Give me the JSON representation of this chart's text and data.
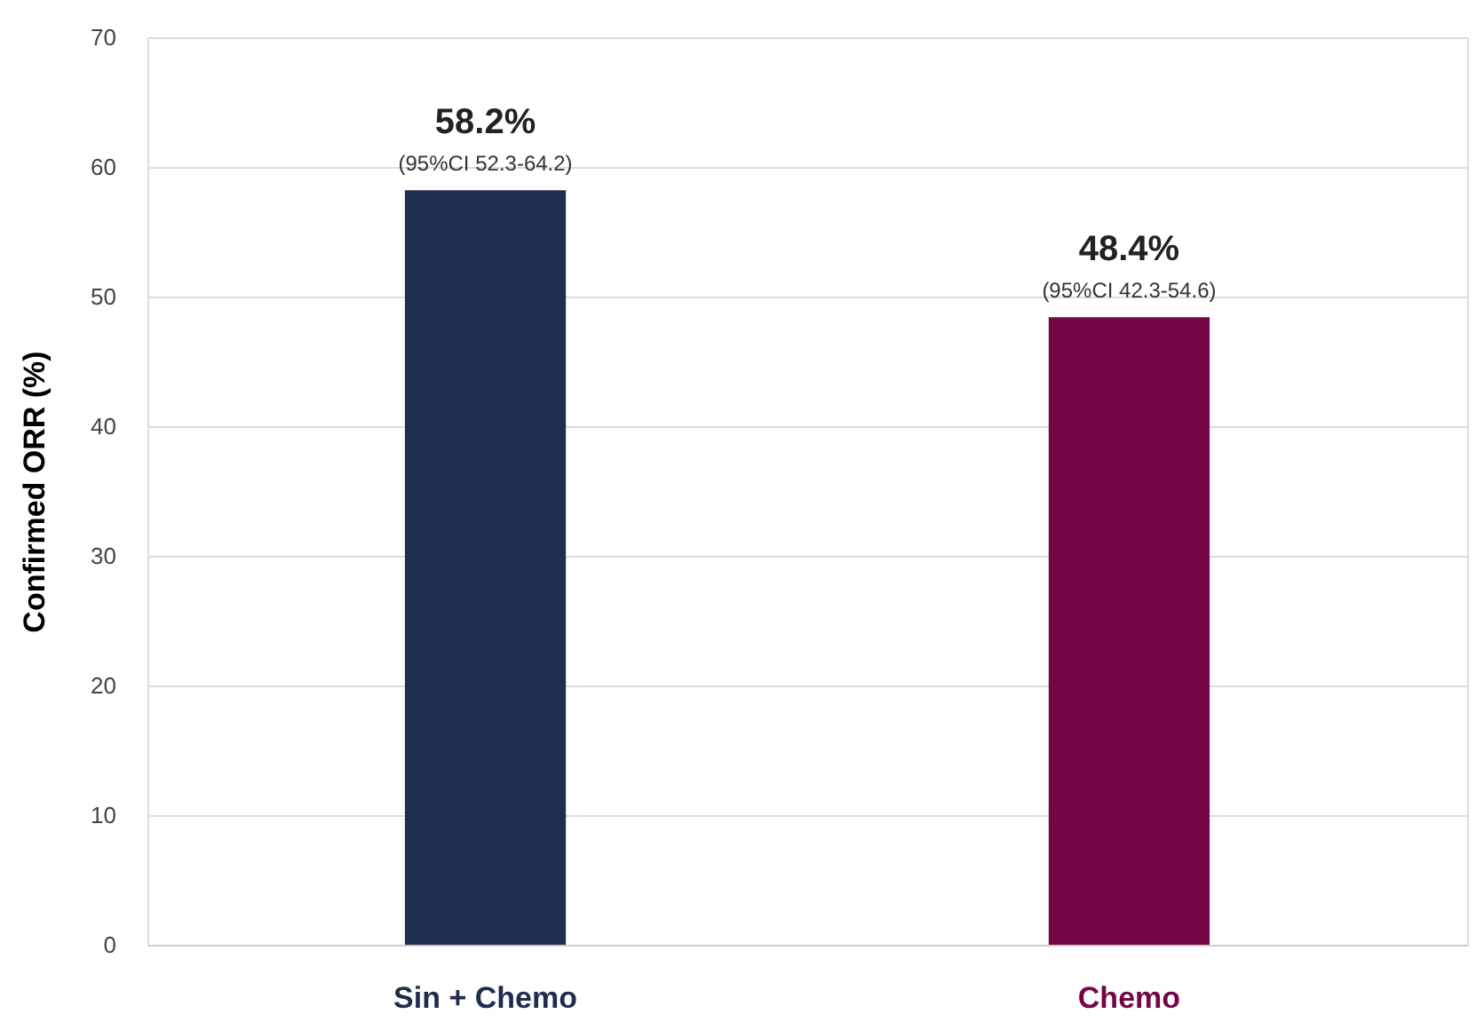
{
  "chart_data": {
    "type": "bar",
    "ylabel": "Confirmed ORR (%)",
    "categories": [
      "Sin + Chemo",
      "Chemo"
    ],
    "values": [
      58.2,
      48.4
    ],
    "colors": [
      "#1f2d4e",
      "#750646"
    ],
    "value_labels": [
      "58.2%",
      "48.4%"
    ],
    "annotations": [
      {
        "text": "(95%CI 52.3-64.2)",
        "x": "Sin + Chemo",
        "y": 58.2
      },
      {
        "text": "(95%CI 42.3-54.6)",
        "x": "Chemo",
        "y": 48.4
      }
    ],
    "ylim": [
      0,
      70
    ],
    "yticks": [
      0,
      10,
      20,
      30,
      40,
      50,
      60,
      70
    ],
    "grid": "y"
  }
}
